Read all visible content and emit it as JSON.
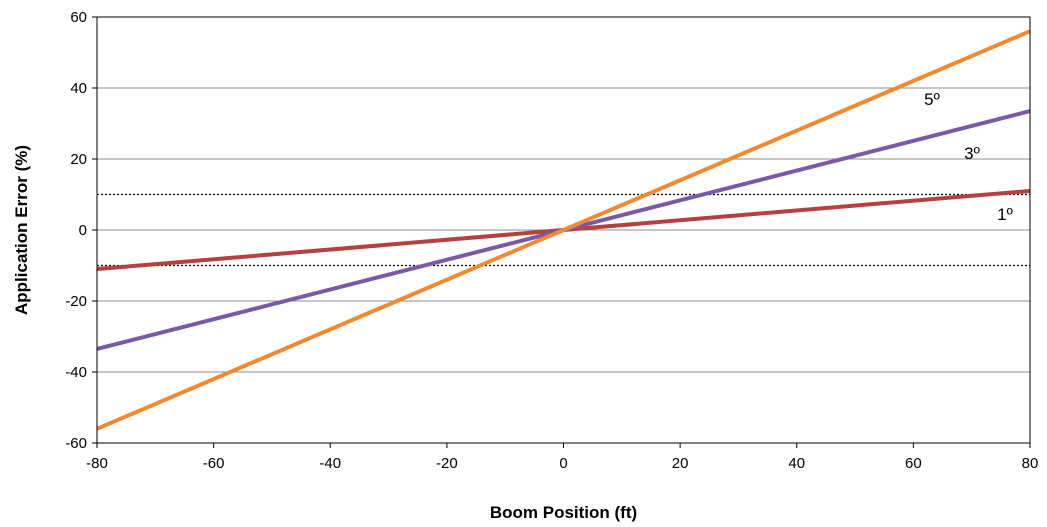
{
  "chart_data": {
    "type": "line",
    "title": "",
    "xlabel": "Boom Position (ft)",
    "ylabel": "Application Error (%)",
    "xlim": [
      -80,
      80
    ],
    "ylim": [
      -60,
      60
    ],
    "x_ticks": [
      -80,
      -60,
      -40,
      -20,
      0,
      20,
      40,
      60,
      80
    ],
    "y_ticks": [
      -60,
      -40,
      -20,
      0,
      20,
      40,
      60
    ],
    "grid": "horizontal",
    "series": [
      {
        "name": "1º",
        "x": [
          -80,
          80
        ],
        "y": [
          -11,
          11
        ],
        "color": "#b5413f"
      },
      {
        "name": "3º",
        "x": [
          -80,
          80
        ],
        "y": [
          -33.5,
          33.5
        ],
        "color": "#7a59a6"
      },
      {
        "name": "5º",
        "x": [
          -80,
          80
        ],
        "y": [
          -56,
          56
        ],
        "color": "#f08a32"
      }
    ],
    "reference_lines": [
      {
        "y": 10,
        "style": "dotted",
        "color": "#000000"
      },
      {
        "y": -10,
        "style": "dotted",
        "color": "#000000"
      }
    ]
  }
}
